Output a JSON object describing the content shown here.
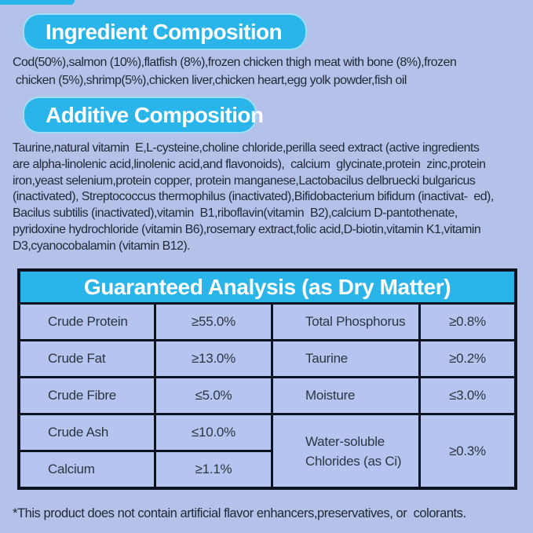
{
  "page": {
    "background_color": "#b4c2ea",
    "accent_cyan": "#29b5e9",
    "table_border_color": "#0c1220"
  },
  "sections": {
    "ingredient": {
      "title": "Ingredient Composition",
      "lines": [
        "Cod(50%),salmon (10%),flatfish (8%),frozen chicken thigh meat with bone (8%),frozen",
        " chicken (5%),shrimp(5%),chicken liver,chicken heart,egg yolk powder,fish oil"
      ]
    },
    "additive": {
      "title": "Additive Composition",
      "lines": [
        "Taurine,natural vitamin  E,L-cysteine,choline chloride,perilla seed extract (active ingredients",
        "are alpha-linolenic acid,linolenic acid,and flavonoids),  calcium  glycinate,protein  zinc,protein",
        "iron,yeast selenium,protein copper, protein manganese,Lactobacilus delbruecki bulgaricus",
        "(inactivated), Streptococcus thermophilus (inactivated),Bifidobacterium bifidum (inactivat-  ed),",
        "Bacilus subtilis (inactivated),vitamin  B1,riboflavin(vitamin  B2),calcium D-pantothenate,",
        "pyridoxine hydrochloride (vitamin B6),rosemary extract,folic acid,D-biotin,vitamin K1,vitamin",
        "D3,cyanocobalamin (vitamin B12)."
      ]
    }
  },
  "analysis_table": {
    "title": "Guaranteed Analysis (as Dry Matter)",
    "rows": [
      {
        "left_label": "Crude Protein",
        "left_value": "≥55.0%",
        "right_label": "Total Phosphorus",
        "right_value": "≥0.8%"
      },
      {
        "left_label": "Crude Fat",
        "left_value": "≥13.0%",
        "right_label": "Taurine",
        "right_value": "≥0.2%"
      },
      {
        "left_label": "Crude Fibre",
        "left_value": "≤5.0%",
        "right_label": "Moisture",
        "right_value": "≤3.0%"
      },
      {
        "left_label": "Crude Ash",
        "left_value": "≤10.0%"
      },
      {
        "left_label": "Calcium",
        "left_value": "≥1.1%"
      }
    ],
    "merged_cell": {
      "label_line1": "Water-soluble",
      "label_line2": "Chlorides (as Ci)",
      "value": "≥0.3%"
    }
  },
  "footer": {
    "note": "*This product does not contain artificial flavor enhancers,preservatives, or  colorants."
  }
}
